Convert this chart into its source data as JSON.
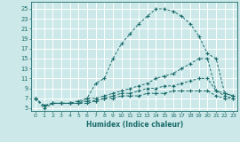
{
  "xlabel": "Humidex (Indice chaleur)",
  "bg_color": "#cce8e8",
  "grid_color": "#b8d8d8",
  "line_color": "#1a6b6b",
  "xlim": [
    -0.5,
    23.5
  ],
  "ylim": [
    4.5,
    26.5
  ],
  "xticks": [
    0,
    1,
    2,
    3,
    4,
    5,
    6,
    7,
    8,
    9,
    10,
    11,
    12,
    13,
    14,
    15,
    16,
    17,
    18,
    19,
    20,
    21,
    22,
    23
  ],
  "yticks": [
    5,
    7,
    9,
    11,
    13,
    15,
    17,
    19,
    21,
    23,
    25
  ],
  "series": [
    {
      "x": [
        0,
        1,
        2,
        3,
        4,
        5,
        6,
        7,
        8,
        9,
        10,
        11,
        12,
        13,
        14,
        15,
        16,
        17,
        18,
        19,
        20,
        21,
        22,
        23
      ],
      "y": [
        7,
        5,
        6,
        6,
        6,
        6,
        7,
        10,
        11,
        15,
        18,
        20,
        22,
        23.5,
        25,
        25,
        24.5,
        23.5,
        22,
        19.5,
        16,
        15,
        8,
        7.5
      ]
    },
    {
      "x": [
        0,
        1,
        2,
        3,
        4,
        5,
        6,
        7,
        8,
        9,
        10,
        11,
        12,
        13,
        14,
        15,
        16,
        17,
        18,
        19,
        20,
        21,
        22,
        23
      ],
      "y": [
        7,
        5.5,
        6,
        6,
        6,
        6.5,
        7,
        7,
        7.5,
        8,
        8.5,
        9,
        9.5,
        10,
        11,
        11.5,
        12,
        13,
        14,
        15,
        15,
        8.5,
        8,
        7.5
      ]
    },
    {
      "x": [
        0,
        1,
        2,
        3,
        4,
        5,
        6,
        7,
        8,
        9,
        10,
        11,
        12,
        13,
        14,
        15,
        16,
        17,
        18,
        19,
        20,
        21,
        22,
        23
      ],
      "y": [
        7,
        5.5,
        6,
        6,
        6,
        6,
        6.5,
        6.5,
        7,
        7.5,
        8,
        8,
        8.5,
        9,
        9,
        9.5,
        9.5,
        10,
        10.5,
        11,
        11,
        8.5,
        7.5,
        7
      ]
    },
    {
      "x": [
        0,
        1,
        2,
        3,
        4,
        5,
        6,
        7,
        8,
        9,
        10,
        11,
        12,
        13,
        14,
        15,
        16,
        17,
        18,
        19,
        20,
        21,
        22,
        23
      ],
      "y": [
        7,
        5.5,
        6,
        6,
        6,
        6,
        6,
        6.5,
        7,
        7,
        7.5,
        7.5,
        7.5,
        8,
        8,
        8,
        8.5,
        8.5,
        8.5,
        8.5,
        8.5,
        7.5,
        7,
        7
      ]
    }
  ]
}
